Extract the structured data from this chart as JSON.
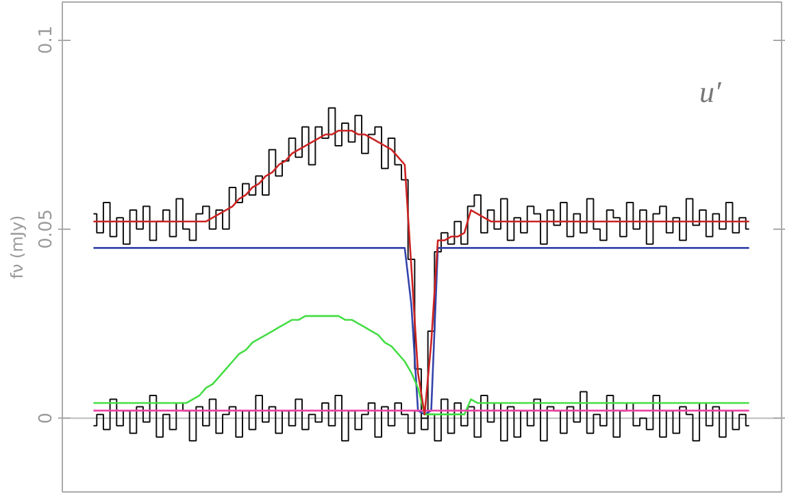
{
  "chart_data": {
    "type": "line",
    "categories": [
      null,
      null,
      null,
      null,
      null,
      null,
      null,
      null,
      null,
      null,
      null,
      null,
      null,
      null,
      null,
      null,
      null,
      null,
      null,
      null,
      null,
      null,
      null,
      null,
      null,
      null,
      null,
      null,
      null,
      null,
      null,
      null,
      null,
      null,
      null,
      null,
      null,
      null,
      null,
      null,
      null,
      null,
      null,
      null,
      null,
      null,
      null,
      null,
      null,
      null,
      null,
      null,
      null,
      null,
      null,
      null,
      null,
      null,
      null,
      null,
      null,
      null,
      null,
      null,
      null,
      null,
      null,
      null,
      null,
      null,
      null,
      null,
      null,
      null,
      null,
      null,
      null,
      null,
      null,
      null,
      null,
      null,
      null,
      null,
      null,
      null,
      null,
      null,
      null,
      null,
      null,
      null,
      null,
      null,
      null,
      null,
      null,
      null,
      null,
      null
    ],
    "ylabel": "fν (mJy)",
    "ylim": [
      -0.0195,
      0.11
    ],
    "yticks": [
      0,
      0.05,
      0.1
    ],
    "tick_labels": "y",
    "annotations": [
      "u′"
    ],
    "ref_lines": [
      {
        "axis": "y",
        "value": 0,
        "color": "#bbbbbb"
      }
    ],
    "series": [
      {
        "type": "step",
        "color": "#111111",
        "values": [
          0.054,
          0.049,
          0.057,
          0.048,
          0.053,
          0.046,
          0.055,
          0.05,
          0.056,
          0.047,
          0.052,
          0.055,
          0.048,
          0.058,
          0.05,
          0.047,
          0.054,
          0.056,
          0.05,
          0.055,
          0.05,
          0.061,
          0.057,
          0.062,
          0.059,
          0.064,
          0.059,
          0.071,
          0.064,
          0.068,
          0.074,
          0.069,
          0.077,
          0.067,
          0.077,
          0.074,
          0.082,
          0.072,
          0.078,
          0.073,
          0.08,
          0.07,
          0.075,
          0.077,
          0.066,
          0.074,
          0.067,
          0.063,
          0.042,
          0.013,
          0.0,
          0.023,
          0.044,
          0.049,
          0.046,
          0.052,
          0.046,
          0.056,
          0.059,
          0.049,
          0.055,
          0.05,
          0.058,
          0.047,
          0.053,
          0.049,
          0.056,
          0.054,
          0.046,
          0.055,
          0.051,
          0.057,
          0.048,
          0.054,
          0.049,
          0.058,
          0.05,
          0.047,
          0.055,
          0.053,
          0.048,
          0.057,
          0.05,
          0.055,
          0.046,
          0.054,
          0.056,
          0.049,
          0.053,
          0.047,
          0.058,
          0.051,
          0.055,
          0.048,
          0.054,
          0.05,
          0.057,
          0.049,
          0.053,
          0.05
        ]
      },
      {
        "type": "step",
        "color": "#111111",
        "values": [
          -0.002,
          0.001,
          -0.003,
          0.005,
          -0.002,
          0.002,
          -0.004,
          0.003,
          -0.001,
          0.006,
          -0.005,
          0.001,
          -0.003,
          0.004,
          0.002,
          -0.006,
          0.003,
          -0.002,
          0.005,
          -0.004,
          0.001,
          0.003,
          -0.005,
          0.002,
          -0.003,
          0.006,
          -0.001,
          0.003,
          -0.004,
          0.002,
          -0.002,
          0.005,
          -0.003,
          0.001,
          -0.001,
          0.004,
          -0.002,
          0.006,
          -0.006,
          0.002,
          -0.003,
          0.001,
          0.004,
          -0.005,
          0.003,
          -0.002,
          0.004,
          0.001,
          -0.004,
          0.002,
          -0.003,
          0.001,
          -0.006,
          0.005,
          -0.004,
          0.004,
          -0.002,
          0.003,
          -0.005,
          0.006,
          -0.001,
          0.004,
          -0.006,
          0.003,
          -0.005,
          0.002,
          -0.002,
          0.005,
          -0.006,
          0.003,
          0.002,
          -0.004,
          0.003,
          -0.001,
          0.007,
          -0.004,
          0.001,
          -0.002,
          0.006,
          -0.005,
          0.002,
          0.004,
          -0.002,
          0.0,
          -0.003,
          0.006,
          -0.005,
          0.002,
          -0.004,
          0.003,
          0.001,
          -0.006,
          0.004,
          -0.002,
          0.003,
          -0.005,
          0.002,
          -0.003,
          0.001,
          -0.002
        ]
      },
      {
        "color": "#3344aa",
        "values": [
          0.045,
          0.045,
          0.045,
          0.045,
          0.045,
          0.045,
          0.045,
          0.045,
          0.045,
          0.045,
          0.045,
          0.045,
          0.045,
          0.045,
          0.045,
          0.045,
          0.045,
          0.045,
          0.045,
          0.045,
          0.045,
          0.045,
          0.045,
          0.045,
          0.045,
          0.045,
          0.045,
          0.045,
          0.045,
          0.045,
          0.045,
          0.045,
          0.045,
          0.045,
          0.045,
          0.045,
          0.045,
          0.045,
          0.045,
          0.045,
          0.045,
          0.045,
          0.045,
          0.045,
          0.045,
          0.045,
          0.045,
          0.045,
          0.03,
          0.002,
          0.001,
          0.002,
          0.045,
          0.045,
          0.045,
          0.045,
          0.045,
          0.045,
          0.045,
          0.045,
          0.045,
          0.045,
          0.045,
          0.045,
          0.045,
          0.045,
          0.045,
          0.045,
          0.045,
          0.045,
          0.045,
          0.045,
          0.045,
          0.045,
          0.045,
          0.045,
          0.045,
          0.045,
          0.045,
          0.045,
          0.045,
          0.045,
          0.045,
          0.045,
          0.045,
          0.045,
          0.045,
          0.045,
          0.045,
          0.045,
          0.045,
          0.045,
          0.045,
          0.045,
          0.045,
          0.045,
          0.045,
          0.045,
          0.045,
          0.045
        ]
      },
      {
        "color": "#44dd44",
        "values": [
          0.004,
          0.004,
          0.004,
          0.004,
          0.004,
          0.004,
          0.004,
          0.004,
          0.004,
          0.004,
          0.004,
          0.004,
          0.004,
          0.004,
          0.004,
          0.005,
          0.006,
          0.008,
          0.009,
          0.011,
          0.013,
          0.015,
          0.017,
          0.018,
          0.02,
          0.021,
          0.022,
          0.023,
          0.024,
          0.025,
          0.026,
          0.026,
          0.027,
          0.027,
          0.027,
          0.027,
          0.027,
          0.027,
          0.026,
          0.026,
          0.025,
          0.024,
          0.023,
          0.022,
          0.02,
          0.019,
          0.017,
          0.015,
          0.012,
          0.008,
          0.001,
          0.001,
          0.001,
          0.001,
          0.001,
          0.001,
          0.001,
          0.005,
          0.004,
          0.004,
          0.004,
          0.004,
          0.004,
          0.004,
          0.004,
          0.004,
          0.004,
          0.004,
          0.004,
          0.004,
          0.004,
          0.004,
          0.004,
          0.004,
          0.004,
          0.004,
          0.004,
          0.004,
          0.004,
          0.004,
          0.004,
          0.004,
          0.004,
          0.004,
          0.004,
          0.004,
          0.004,
          0.004,
          0.004,
          0.004,
          0.004,
          0.004,
          0.004,
          0.004,
          0.004,
          0.004,
          0.004,
          0.004,
          0.004,
          0.004
        ]
      },
      {
        "color": "#ee44aa",
        "values": [
          0.002,
          0.002,
          0.002,
          0.002,
          0.002,
          0.002,
          0.002,
          0.002,
          0.002,
          0.002,
          0.002,
          0.002,
          0.002,
          0.002,
          0.002,
          0.002,
          0.002,
          0.002,
          0.002,
          0.002,
          0.002,
          0.002,
          0.002,
          0.002,
          0.002,
          0.002,
          0.002,
          0.002,
          0.002,
          0.002,
          0.002,
          0.002,
          0.002,
          0.002,
          0.002,
          0.002,
          0.002,
          0.002,
          0.002,
          0.002,
          0.002,
          0.002,
          0.002,
          0.002,
          0.002,
          0.002,
          0.002,
          0.002,
          0.002,
          0.002,
          0.002,
          0.002,
          0.002,
          0.002,
          0.002,
          0.002,
          0.002,
          0.002,
          0.002,
          0.002,
          0.002,
          0.002,
          0.002,
          0.002,
          0.002,
          0.002,
          0.002,
          0.002,
          0.002,
          0.002,
          0.002,
          0.002,
          0.002,
          0.002,
          0.002,
          0.002,
          0.002,
          0.002,
          0.002,
          0.002,
          0.002,
          0.002,
          0.002,
          0.002,
          0.002,
          0.002,
          0.002,
          0.002,
          0.002,
          0.002,
          0.002,
          0.002,
          0.002,
          0.002,
          0.002,
          0.002,
          0.002,
          0.002,
          0.002,
          0.002
        ]
      },
      {
        "color": "#cc2222",
        "values": [
          0.052,
          0.052,
          0.052,
          0.052,
          0.052,
          0.052,
          0.052,
          0.052,
          0.052,
          0.052,
          0.052,
          0.052,
          0.052,
          0.052,
          0.052,
          0.052,
          0.052,
          0.052,
          0.053,
          0.054,
          0.055,
          0.056,
          0.058,
          0.059,
          0.061,
          0.062,
          0.064,
          0.065,
          0.067,
          0.068,
          0.07,
          0.071,
          0.072,
          0.073,
          0.074,
          0.075,
          0.075,
          0.076,
          0.076,
          0.076,
          0.075,
          0.075,
          0.074,
          0.073,
          0.072,
          0.071,
          0.069,
          0.067,
          0.04,
          0.012,
          0.001,
          0.02,
          0.047,
          0.047,
          0.048,
          0.048,
          0.049,
          0.055,
          0.054,
          0.053,
          0.052,
          0.052,
          0.052,
          0.052,
          0.052,
          0.052,
          0.052,
          0.052,
          0.052,
          0.052,
          0.052,
          0.052,
          0.052,
          0.052,
          0.052,
          0.052,
          0.052,
          0.052,
          0.052,
          0.052,
          0.052,
          0.052,
          0.052,
          0.052,
          0.052,
          0.052,
          0.052,
          0.052,
          0.052,
          0.052,
          0.052,
          0.052,
          0.052,
          0.052,
          0.052,
          0.052,
          0.052,
          0.052,
          0.052,
          0.052
        ]
      }
    ]
  }
}
